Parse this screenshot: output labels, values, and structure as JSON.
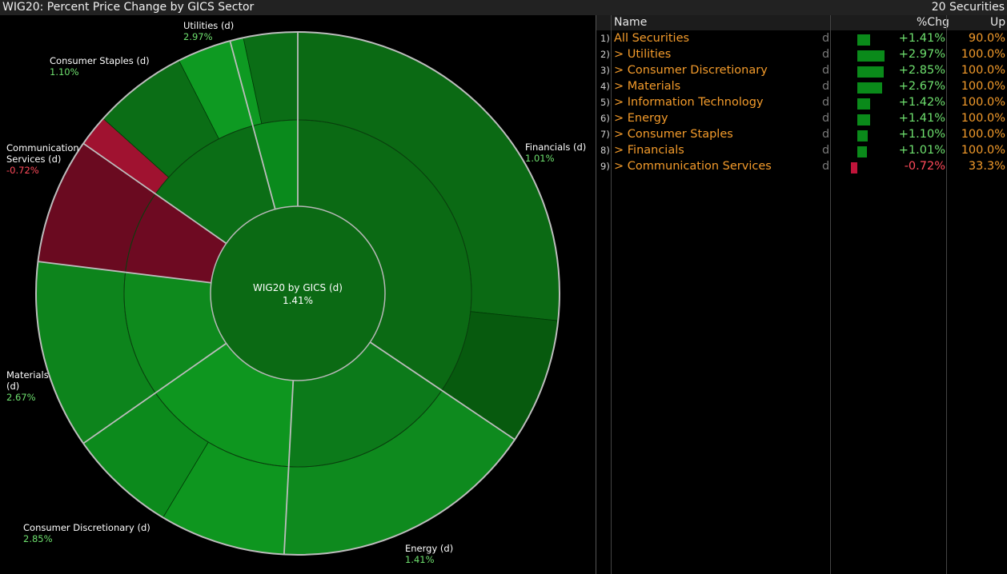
{
  "window": {
    "title": "WIG20: Percent Price Change by GICS Sector",
    "securities_count": "20 Securities"
  },
  "colors": {
    "positive_text": "#6ee06e",
    "negative_text": "#ff4a5a",
    "name_text": "#f39b2b"
  },
  "chart": {
    "center_label": "WIG20 by GICS (d)",
    "center_value": "1.41%",
    "labels": [
      {
        "name": "Utilities (d)",
        "value": "2.97%",
        "sign": "pos"
      },
      {
        "name": "Consumer Staples (d)",
        "value": "1.10%",
        "sign": "pos"
      },
      {
        "name_lines": [
          "Communication",
          "Services (d)"
        ],
        "value": "-0.72%",
        "sign": "neg"
      },
      {
        "name": "Financials (d)",
        "value": "1.01%",
        "sign": "pos"
      },
      {
        "name_lines": [
          "Materials",
          "(d)"
        ],
        "value": "2.67%",
        "sign": "pos"
      },
      {
        "name": "Consumer Discretionary (d)",
        "value": "2.85%",
        "sign": "pos"
      },
      {
        "name": "Energy (d)",
        "value": "1.41%",
        "sign": "pos"
      }
    ]
  },
  "table": {
    "headers": {
      "name": "Name",
      "chg": "%Chg",
      "up": "Up"
    },
    "rows": [
      {
        "num": "1)",
        "name": "All Securities",
        "d": "d",
        "chg": "+1.41%",
        "chg_value": 1.41,
        "up": "90.0%"
      },
      {
        "num": "2)",
        "name": "> Utilities",
        "d": "d",
        "chg": "+2.97%",
        "chg_value": 2.97,
        "up": "100.0%"
      },
      {
        "num": "3)",
        "name": "> Consumer Discretionary",
        "d": "d",
        "chg": "+2.85%",
        "chg_value": 2.85,
        "up": "100.0%"
      },
      {
        "num": "4)",
        "name": "> Materials",
        "d": "d",
        "chg": "+2.67%",
        "chg_value": 2.67,
        "up": "100.0%"
      },
      {
        "num": "5)",
        "name": "> Information Technology",
        "d": "d",
        "chg": "+1.42%",
        "chg_value": 1.42,
        "up": "100.0%"
      },
      {
        "num": "6)",
        "name": "> Energy",
        "d": "d",
        "chg": "+1.41%",
        "chg_value": 1.41,
        "up": "100.0%"
      },
      {
        "num": "7)",
        "name": "> Consumer Staples",
        "d": "d",
        "chg": "+1.10%",
        "chg_value": 1.1,
        "up": "100.0%"
      },
      {
        "num": "8)",
        "name": "> Financials",
        "d": "d",
        "chg": "+1.01%",
        "chg_value": 1.01,
        "up": "100.0%"
      },
      {
        "num": "9)",
        "name": "> Communication Services",
        "d": "d",
        "chg": "-0.72%",
        "chg_value": -0.72,
        "up": "33.3%"
      }
    ]
  }
}
